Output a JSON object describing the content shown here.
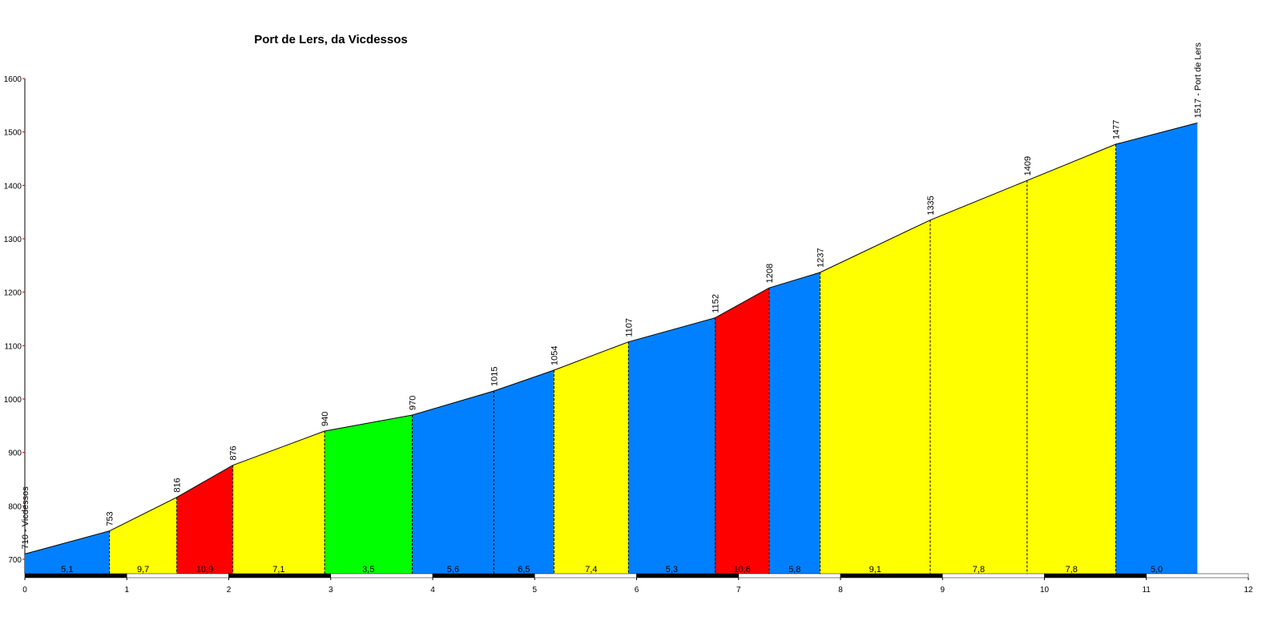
{
  "chart_data": {
    "type": "elevation-profile",
    "title": "Port de Lers, da Vicdessos",
    "x": [
      0,
      0.83,
      1.49,
      2.04,
      2.94,
      3.8,
      4.6,
      5.19,
      5.92,
      6.77,
      7.3,
      7.8,
      8.88,
      9.83,
      10.7,
      11.5
    ],
    "values": [
      710,
      753,
      816,
      876,
      940,
      970,
      1015,
      1054,
      1107,
      1152,
      1208,
      1237,
      1335,
      1409,
      1477,
      1517
    ],
    "value_labels": [
      "710 - Vicdessos",
      "753",
      "816",
      "876",
      "940",
      "970",
      "1015",
      "1054",
      "1107",
      "1152",
      "1208",
      "1237",
      "1335",
      "1409",
      "1477",
      "1517 - Port de Lers"
    ],
    "gradients": [
      5.1,
      9.7,
      10.9,
      7.1,
      3.5,
      5.6,
      6.5,
      7.4,
      5.3,
      10.6,
      5.8,
      9.1,
      7.8,
      7.8,
      5.0
    ],
    "gradient_labels": [
      "5,1",
      "9,7",
      "10,9",
      "7,1",
      "3,5",
      "5,6",
      "6,5",
      "7,4",
      "5,3",
      "10,6",
      "5,8",
      "9,1",
      "7,8",
      "7,8",
      "5,0"
    ],
    "segment_colors": [
      "#0080ff",
      "#ffff00",
      "#ff0000",
      "#ffff00",
      "#00ff00",
      "#0080ff",
      "#0080ff",
      "#ffff00",
      "#0080ff",
      "#ff0000",
      "#0080ff",
      "#ffff00",
      "#ffff00",
      "#ffff00",
      "#0080ff"
    ],
    "xlim": [
      0,
      12
    ],
    "xticks": [
      0,
      1,
      2,
      3,
      4,
      5,
      6,
      7,
      8,
      9,
      10,
      11,
      12
    ],
    "ylim": [
      673,
      1600
    ],
    "yticks": [
      700,
      800,
      900,
      1000,
      1100,
      1200,
      1300,
      1400,
      1500,
      1600
    ]
  }
}
